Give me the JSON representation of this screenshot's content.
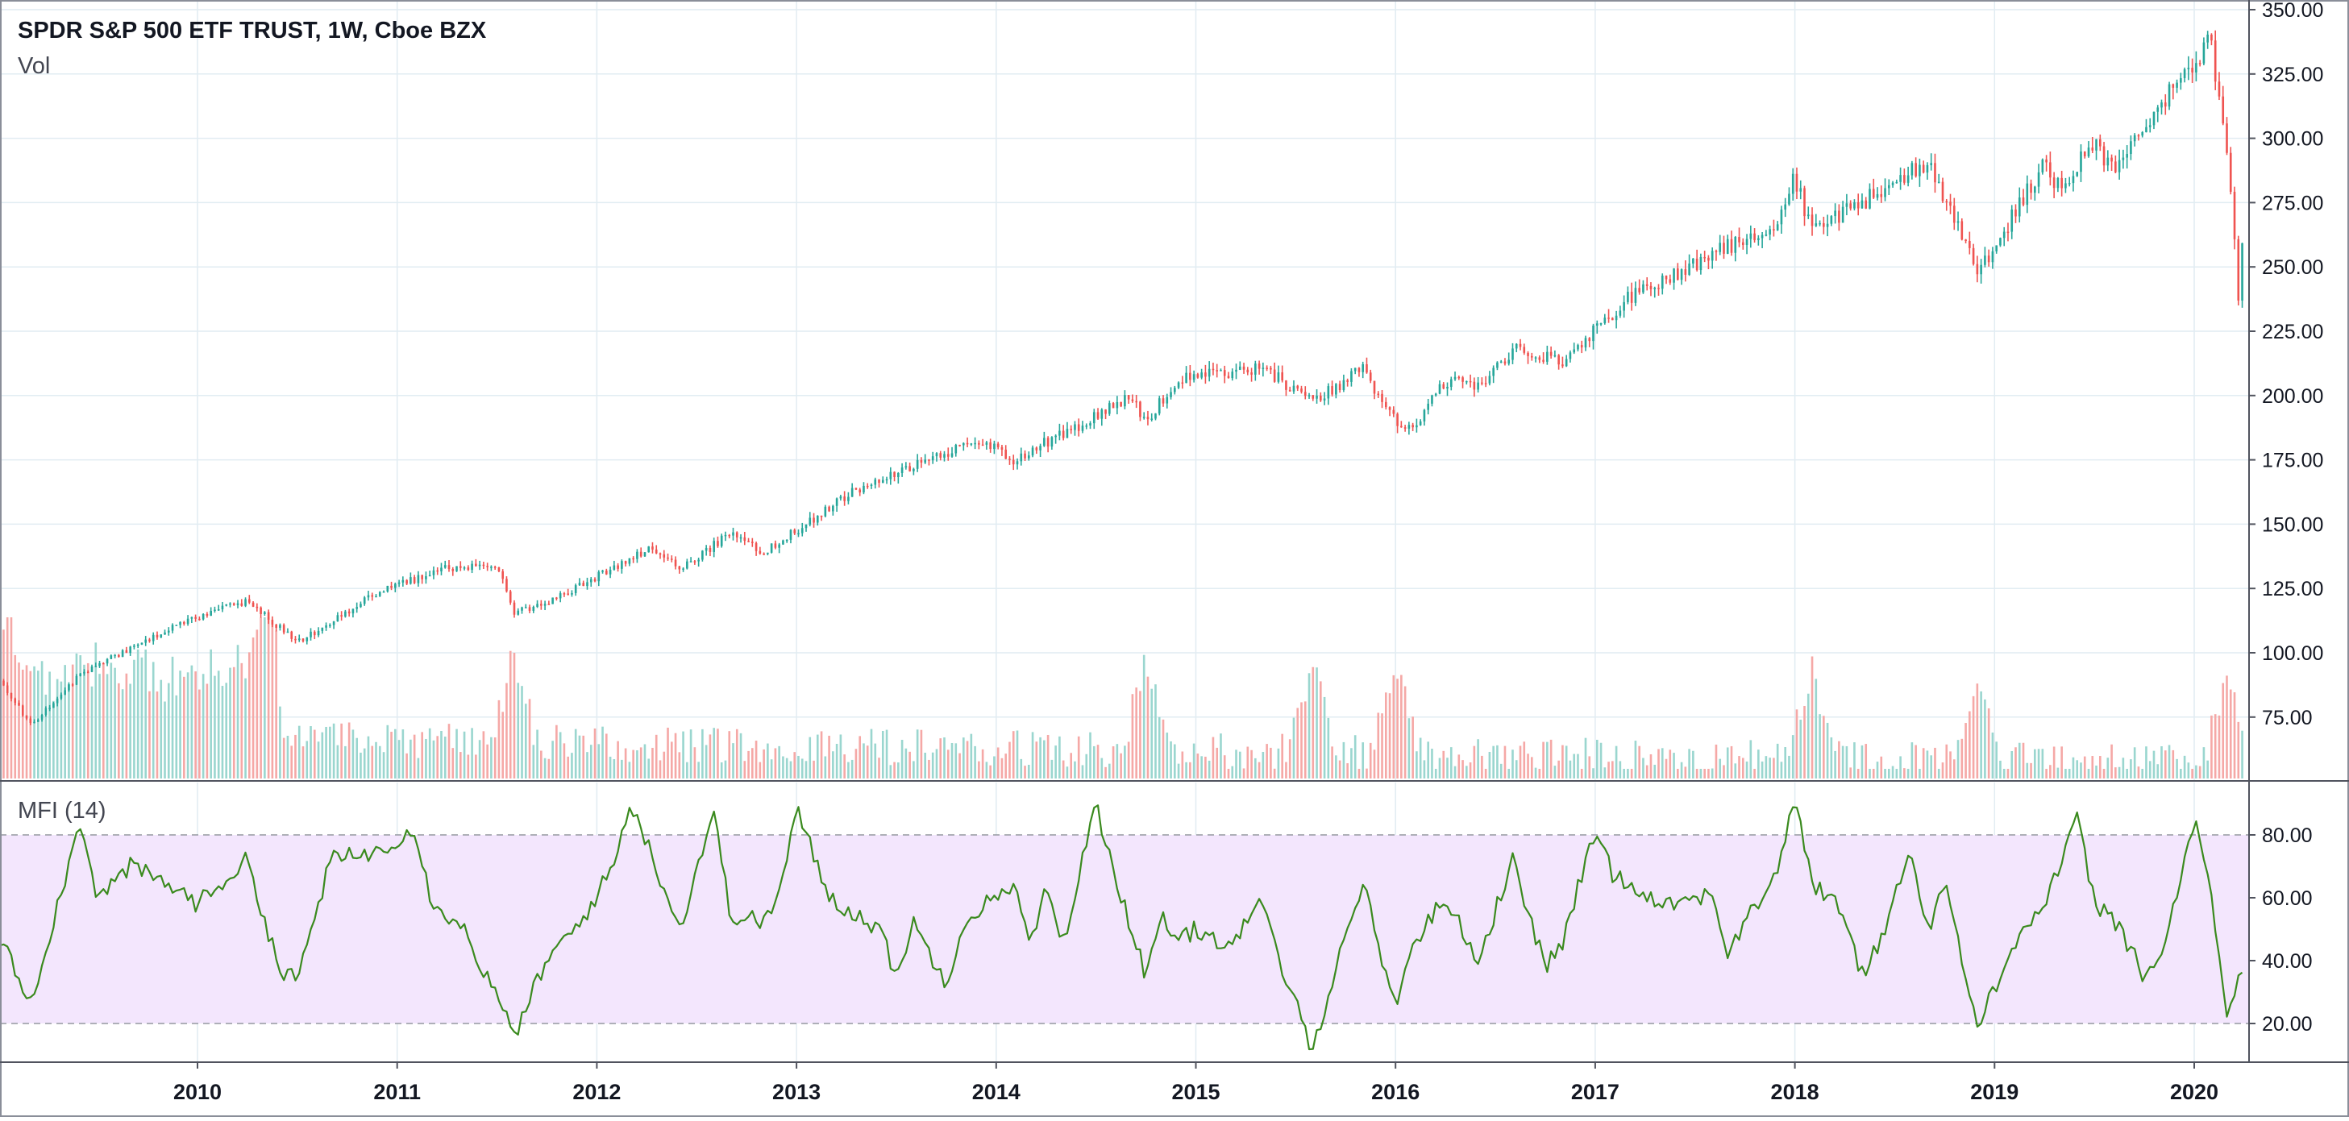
{
  "header": {
    "title": "SPDR S&P 500 ETF TRUST, 1W, Cboe BZX",
    "volume_label": "Vol",
    "mfi_label": "MFI (14)"
  },
  "colors": {
    "up": "#26a69a",
    "down": "#ef5350",
    "volume_up": "#9ad6cf",
    "volume_down": "#f5a8a6",
    "mfi_line": "#3a8a1e",
    "mfi_band": "#f3e6fd",
    "grid": "#e1ecf2",
    "axis_text": "#131722"
  },
  "chart_data": [
    {
      "type": "candlestick",
      "title": "SPDR S&P 500 ETF TRUST, 1W, Cboe BZX",
      "x_range": [
        "2009-01",
        "2020-03"
      ],
      "ylim": [
        50,
        350
      ],
      "y_ticks": [
        "75.00",
        "100.00",
        "125.00",
        "150.00",
        "175.00",
        "200.00",
        "225.00",
        "250.00",
        "275.00",
        "300.00",
        "325.00",
        "350.00"
      ],
      "x_ticks": [
        "2010",
        "2011",
        "2012",
        "2013",
        "2014",
        "2015",
        "2016",
        "2017",
        "2018",
        "2019",
        "2020"
      ],
      "grid": true,
      "close_anchors": {
        "x": [
          "2009-01",
          "2009-03",
          "2009-06",
          "2009-12",
          "2010-04",
          "2010-07",
          "2010-12",
          "2011-04",
          "2011-07",
          "2011-08",
          "2011-10",
          "2011-12",
          "2012-04",
          "2012-06",
          "2012-09",
          "2012-11",
          "2013-05",
          "2013-12",
          "2014-02",
          "2014-09",
          "2014-10",
          "2014-12",
          "2015-05",
          "2015-08",
          "2015-11",
          "2016-01",
          "2016-02",
          "2016-04",
          "2016-06",
          "2016-08",
          "2016-11",
          "2017-03",
          "2017-12",
          "2018-01",
          "2018-02",
          "2018-09",
          "2018-12",
          "2019-04",
          "2019-05",
          "2019-07",
          "2019-08",
          "2019-12",
          "2020-02",
          "2020-03-10",
          "2020-03-23",
          "2020-04"
        ],
        "values": [
          90,
          72,
          92,
          112,
          120,
          104,
          124,
          133,
          134,
          115,
          120,
          126,
          140,
          133,
          146,
          139,
          165,
          183,
          175,
          199,
          190,
          207,
          211,
          197,
          210,
          190,
          187,
          206,
          203,
          218,
          213,
          238,
          268,
          285,
          263,
          291,
          248,
          290,
          280,
          300,
          288,
          322,
          338,
          275,
          228,
          276
        ]
      }
    },
    {
      "type": "bar",
      "name": "Vol",
      "peaks": [
        "2009-01",
        "2010-05",
        "2011-08",
        "2014-10",
        "2015-08",
        "2016-01",
        "2018-02",
        "2018-12",
        "2020-03"
      ]
    },
    {
      "type": "line",
      "name": "MFI (14)",
      "ylim": [
        10,
        100
      ],
      "y_ticks": [
        "20.00",
        "40.00",
        "60.00",
        "80.00"
      ],
      "band": [
        20,
        80
      ],
      "x": [
        "2009-01",
        "2009-03",
        "2009-06",
        "2009-07",
        "2009-09",
        "2009-12",
        "2010-01",
        "2010-04",
        "2010-06",
        "2010-07",
        "2010-09",
        "2010-12",
        "2011-02",
        "2011-03",
        "2011-05",
        "2011-07",
        "2011-08",
        "2011-10",
        "2011-12",
        "2012-02",
        "2012-03",
        "2012-05",
        "2012-06",
        "2012-08",
        "2012-09",
        "2012-11",
        "2012-12",
        "2013-01",
        "2013-03",
        "2013-06",
        "2013-07",
        "2013-08",
        "2013-10",
        "2013-11",
        "2014-02",
        "2014-03",
        "2014-04",
        "2014-05",
        "2014-07",
        "2014-08",
        "2014-10",
        "2014-11",
        "2014-12",
        "2015-01",
        "2015-03",
        "2015-05",
        "2015-06",
        "2015-08",
        "2015-09",
        "2015-10",
        "2015-11",
        "2016-01",
        "2016-02",
        "2016-04",
        "2016-06",
        "2016-08",
        "2016-10",
        "2016-11",
        "2017-01",
        "2017-02",
        "2017-04",
        "2017-06",
        "2017-08",
        "2017-09",
        "2017-12",
        "2018-01",
        "2018-02",
        "2018-04",
        "2018-05",
        "2018-06",
        "2018-08",
        "2018-09",
        "2018-10",
        "2018-12",
        "2019-02",
        "2019-04",
        "2019-06",
        "2019-07",
        "2019-08",
        "2019-10",
        "2019-11",
        "2020-01",
        "2020-02",
        "2020-03",
        "2020-04"
      ],
      "values": [
        48,
        27,
        85,
        60,
        70,
        62,
        58,
        72,
        36,
        34,
        72,
        75,
        83,
        60,
        50,
        28,
        16,
        40,
        52,
        70,
        91,
        64,
        50,
        88,
        55,
        52,
        62,
        88,
        60,
        50,
        35,
        52,
        33,
        52,
        65,
        45,
        62,
        45,
        90,
        70,
        35,
        53,
        46,
        50,
        45,
        58,
        40,
        12,
        30,
        48,
        65,
        25,
        45,
        60,
        40,
        72,
        38,
        45,
        82,
        68,
        61,
        58,
        62,
        42,
        70,
        92,
        65,
        55,
        35,
        45,
        75,
        50,
        65,
        18,
        45,
        58,
        85,
        58,
        55,
        35,
        40,
        85,
        60,
        22,
        40
      ]
    }
  ]
}
